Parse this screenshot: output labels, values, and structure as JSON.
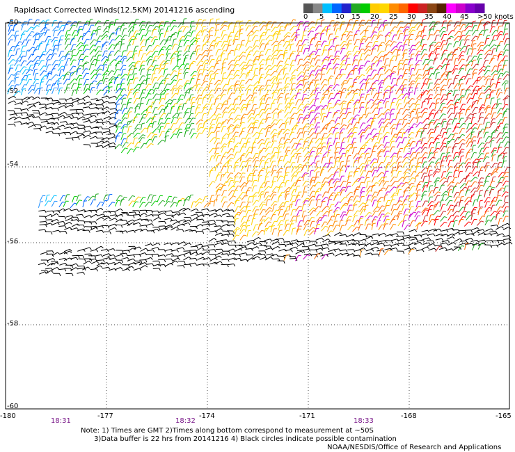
{
  "title": "Rapidsact Corrected Winds(12.5KM) 20141216 ascending",
  "legend": {
    "colors": [
      "#555555",
      "#888888",
      "#00bfff",
      "#0066ff",
      "#2222cc",
      "#22aa22",
      "#00cc00",
      "#ffcc00",
      "#ffd700",
      "#ff8c00",
      "#ff6600",
      "#ff0000",
      "#cc2222",
      "#8b4513",
      "#552200",
      "#ff00ff",
      "#cc00cc",
      "#8800cc",
      "#6600aa"
    ],
    "labels": [
      "0",
      "5",
      "10",
      "15",
      "20",
      "25",
      "30",
      "35",
      "40",
      "45",
      ">50 knots"
    ]
  },
  "lat_labels": [
    "-50",
    "-52",
    "-54",
    "-56",
    "-58",
    "-60"
  ],
  "lon_labels": [
    "-180",
    "-177",
    "-174",
    "-171",
    "-168",
    "-165"
  ],
  "time_labels": [
    "18:31",
    "18:32",
    "18:33"
  ],
  "notes": [
    "Note: 1) Times are GMT 2)Times along bottom correspond to measurement at ~50S",
    "      3)Data buffer is 22 hrs from 20141216 4) Black circles indicate possible contamination"
  ],
  "credit": "NOAA/NESDIS/Office of Research and Applications"
}
